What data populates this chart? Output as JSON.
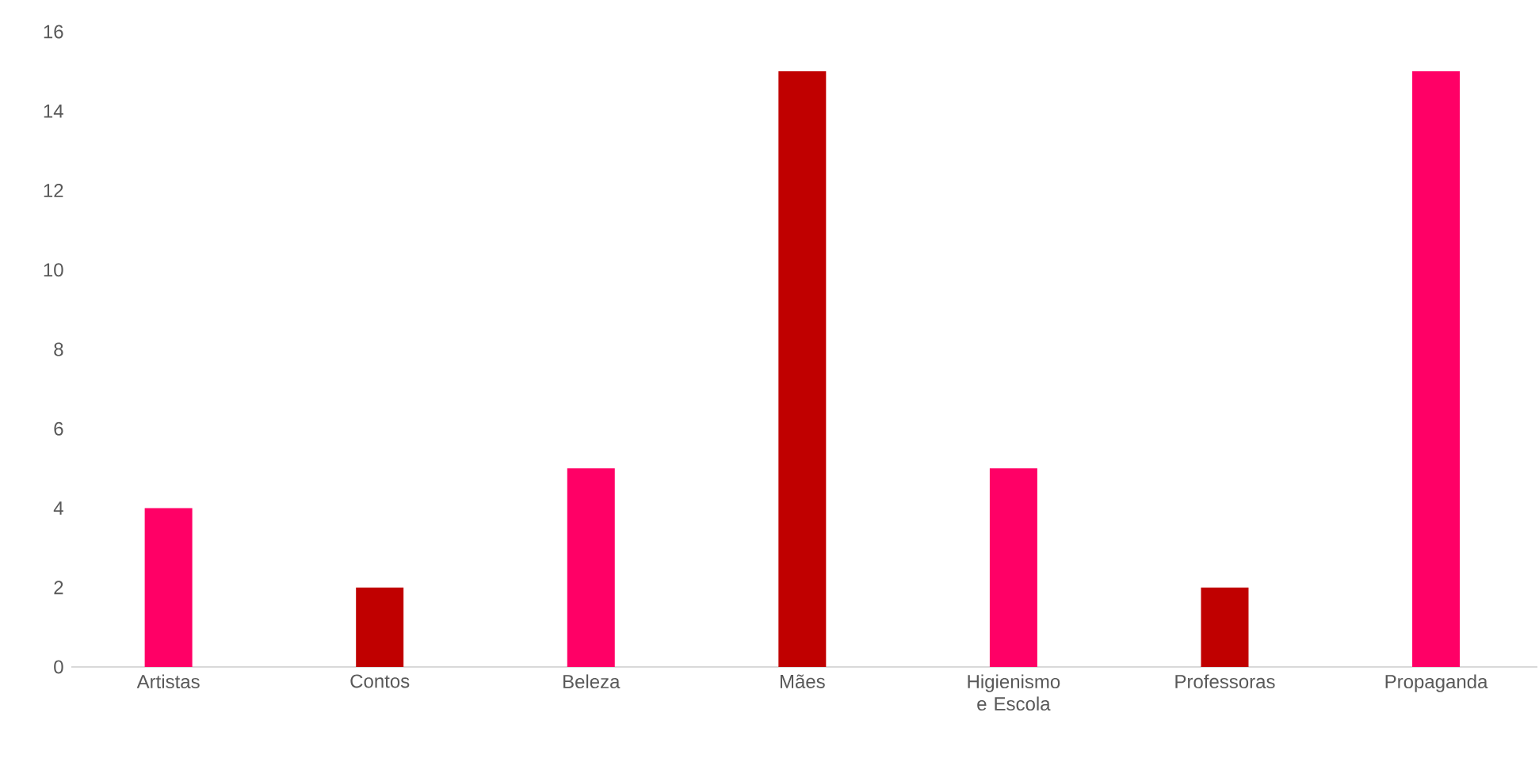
{
  "chart_data": {
    "type": "bar",
    "categories": [
      "Artistas",
      "Contos",
      "Beleza",
      "Mães",
      "Higienismo e Escola",
      "Professoras",
      "Propaganda"
    ],
    "values": [
      4,
      2,
      5,
      15,
      5,
      2,
      15
    ],
    "colors": [
      "#ff0066",
      "#c00000",
      "#ff0066",
      "#c00000",
      "#ff0066",
      "#c00000",
      "#ff0066"
    ],
    "ylim": [
      0,
      16
    ],
    "yticks": [
      0,
      2,
      4,
      6,
      8,
      10,
      12,
      14,
      16
    ]
  }
}
